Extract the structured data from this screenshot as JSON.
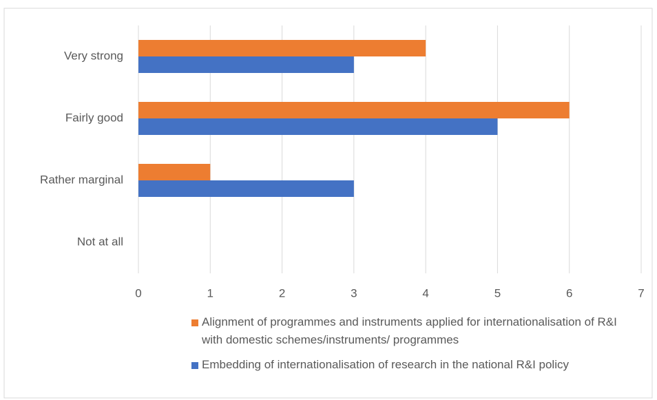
{
  "chart_data": {
    "type": "bar",
    "orientation": "horizontal",
    "categories": [
      "Very strong",
      "Fairly good",
      "Rather marginal",
      "Not at all"
    ],
    "series": [
      {
        "name": "Alignment of programmes and instruments applied for internationalisation of R&I with domestic schemes/instruments/ programmes",
        "color": "#ed7d31",
        "values": [
          4,
          6,
          1,
          0
        ]
      },
      {
        "name": "Embedding of internationalisation of research in the national R&I policy",
        "color": "#4472c4",
        "values": [
          3,
          5,
          3,
          0
        ]
      }
    ],
    "xlim": [
      0,
      7
    ],
    "xticks": [
      0,
      1,
      2,
      3,
      4,
      5,
      6,
      7
    ],
    "grid": true,
    "legend": "bottom"
  }
}
